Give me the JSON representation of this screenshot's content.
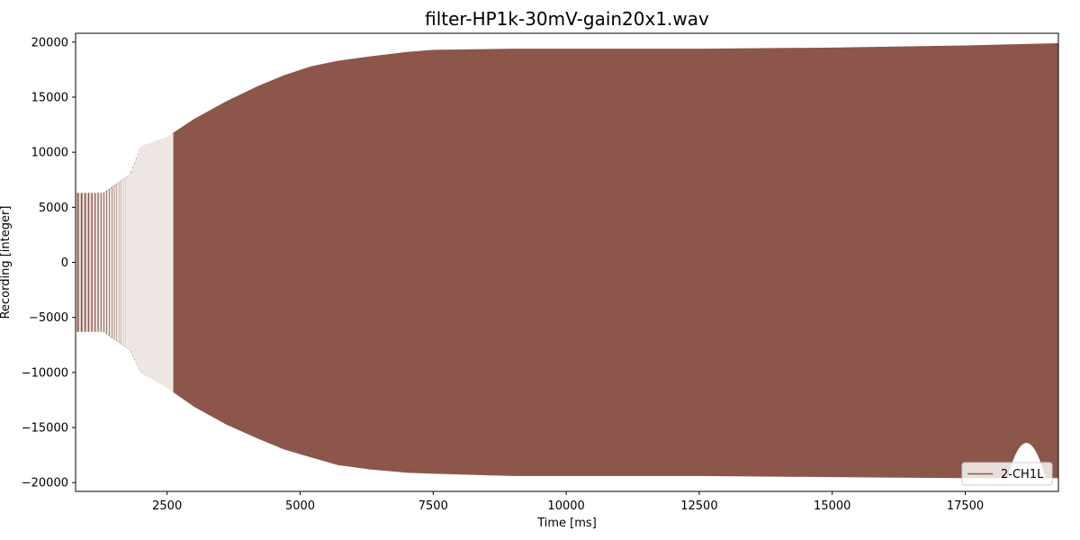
{
  "chart_data": {
    "type": "line",
    "title": "filter-HP1k-30mV-gain20x1.wav",
    "xlabel": "Time [ms]",
    "ylabel": "Recording [integer]",
    "xlim": [
      780,
      19250
    ],
    "ylim": [
      -20800,
      20800
    ],
    "xticks": [
      2500,
      5000,
      7500,
      10000,
      12500,
      15000,
      17500
    ],
    "yticks": [
      -20000,
      -15000,
      -10000,
      -5000,
      0,
      5000,
      10000,
      15000,
      20000
    ],
    "grid": false,
    "legend": {
      "placement": "lower-right"
    },
    "series": [
      {
        "name": "2-CH1L",
        "color": "#8c564b",
        "envelope": {
          "x": [
            780,
            1300,
            1800,
            2000,
            2500,
            3000,
            3600,
            4200,
            4700,
            5200,
            5700,
            6300,
            7000,
            7500,
            9000,
            10000,
            12500,
            15000,
            17500,
            19250
          ],
          "upper": [
            6300,
            6300,
            8000,
            10500,
            11400,
            13000,
            14600,
            16000,
            17000,
            17800,
            18300,
            18700,
            19100,
            19300,
            19400,
            19400,
            19400,
            19500,
            19700,
            19900
          ],
          "lower": [
            -6300,
            -6300,
            -8000,
            -10000,
            -11400,
            -13100,
            -14700,
            -16000,
            -17000,
            -17700,
            -18400,
            -18800,
            -19100,
            -19200,
            -19400,
            -19400,
            -19400,
            -19500,
            -19600,
            -19600
          ]
        }
      }
    ]
  }
}
